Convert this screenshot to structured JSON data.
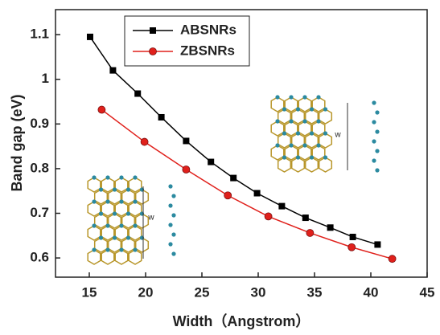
{
  "chart_data": {
    "type": "line",
    "xlabel": "Width（Angstrom）",
    "ylabel": "Band gap (eV)",
    "xlim": [
      12,
      45
    ],
    "xticks": [
      15,
      20,
      25,
      30,
      35,
      40,
      45
    ],
    "ylim": [
      0.557,
      1.156
    ],
    "yticks": [
      0.6,
      0.7,
      0.8,
      0.9,
      1.0,
      1.1
    ],
    "legend": "upper-left",
    "annotations": [
      "w",
      "w"
    ],
    "series": [
      {
        "name": "ABSNRs",
        "color": "#000000",
        "marker": "square",
        "x": [
          15.07,
          17.1,
          19.3,
          21.4,
          23.6,
          25.8,
          27.8,
          29.9,
          32.1,
          34.2,
          36.4,
          38.4,
          40.6
        ],
        "values": [
          1.095,
          1.02,
          0.968,
          0.915,
          0.862,
          0.815,
          0.779,
          0.745,
          0.716,
          0.69,
          0.668,
          0.647,
          0.63
        ]
      },
      {
        "name": "ZBSNRs",
        "color": "#e0201b",
        "marker": "circle",
        "x": [
          16.1,
          19.9,
          23.6,
          27.3,
          30.9,
          34.6,
          38.3,
          41.9
        ],
        "values": [
          0.932,
          0.86,
          0.798,
          0.74,
          0.693,
          0.656,
          0.624,
          0.598
        ]
      }
    ]
  }
}
